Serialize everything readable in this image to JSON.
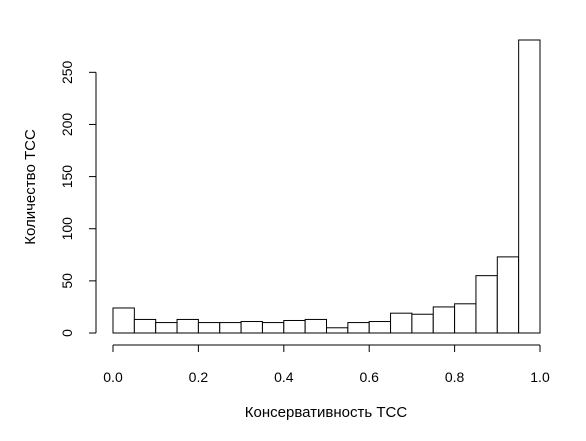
{
  "chart_data": {
    "type": "bar",
    "subtype": "histogram",
    "title": "",
    "xlabel": "Консервативность ТСС",
    "ylabel": "Количество ТСС",
    "bin_width": 0.05,
    "bins": [
      {
        "x0": 0.0,
        "x1": 0.05,
        "count": 24
      },
      {
        "x0": 0.05,
        "x1": 0.1,
        "count": 13
      },
      {
        "x0": 0.1,
        "x1": 0.15,
        "count": 10
      },
      {
        "x0": 0.15,
        "x1": 0.2,
        "count": 13
      },
      {
        "x0": 0.2,
        "x1": 0.25,
        "count": 10
      },
      {
        "x0": 0.25,
        "x1": 0.3,
        "count": 10
      },
      {
        "x0": 0.3,
        "x1": 0.35,
        "count": 11
      },
      {
        "x0": 0.35,
        "x1": 0.4,
        "count": 10
      },
      {
        "x0": 0.4,
        "x1": 0.45,
        "count": 12
      },
      {
        "x0": 0.45,
        "x1": 0.5,
        "count": 13
      },
      {
        "x0": 0.5,
        "x1": 0.55,
        "count": 5
      },
      {
        "x0": 0.55,
        "x1": 0.6,
        "count": 10
      },
      {
        "x0": 0.6,
        "x1": 0.65,
        "count": 11
      },
      {
        "x0": 0.65,
        "x1": 0.7,
        "count": 19
      },
      {
        "x0": 0.7,
        "x1": 0.75,
        "count": 18
      },
      {
        "x0": 0.75,
        "x1": 0.8,
        "count": 25
      },
      {
        "x0": 0.8,
        "x1": 0.85,
        "count": 28
      },
      {
        "x0": 0.85,
        "x1": 0.9,
        "count": 55
      },
      {
        "x0": 0.9,
        "x1": 0.95,
        "count": 73
      },
      {
        "x0": 0.95,
        "x1": 1.0,
        "count": 281
      }
    ],
    "xlim": [
      0,
      1
    ],
    "ylim": [
      0,
      281
    ],
    "xticks": [
      "0.0",
      "0.2",
      "0.4",
      "0.6",
      "0.8",
      "1.0"
    ],
    "yticks": [
      "0",
      "50",
      "100",
      "150",
      "200",
      "250"
    ],
    "grid": false,
    "legend": "none",
    "colors": {
      "bar_fill": "#ffffff",
      "bar_stroke": "#000000"
    }
  }
}
